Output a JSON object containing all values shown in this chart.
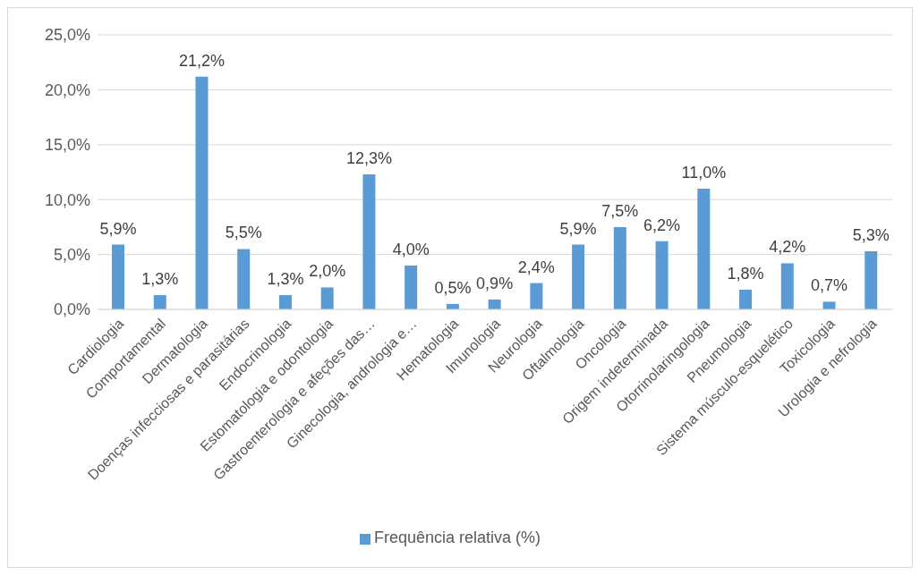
{
  "chart_data": {
    "type": "bar",
    "categories": [
      "Cardiologia",
      "Comportamental",
      "Dermatologia",
      "Doenças infecciosas e parasitárias",
      "Endocrinologia",
      "Estomatologia e odontologia",
      "Gastroenterologia e afeções das…",
      "Ginecologia, andrologia e…",
      "Hematologia",
      "Imunologia",
      "Neurologia",
      "Oftalmologia",
      "Oncologia",
      "Origem indeterminada",
      "Otorrinolaringologia",
      "Pneumologia",
      "Sistema músculo-esquelético",
      "Toxicologia",
      "Urologia e nefrologia"
    ],
    "series": [
      {
        "name": "Frequência relativa (%)",
        "color": "#5b9bd5",
        "values": [
          5.9,
          1.3,
          21.2,
          5.5,
          1.3,
          2.0,
          12.3,
          4.0,
          0.5,
          0.9,
          2.4,
          5.9,
          7.5,
          6.2,
          11.0,
          1.8,
          4.2,
          0.7,
          5.3
        ],
        "value_labels": [
          "5,9%",
          "1,3%",
          "21,2%",
          "5,5%",
          "1,3%",
          "2,0%",
          "12,3%",
          "4,0%",
          "0,5%",
          "0,9%",
          "2,4%",
          "5,9%",
          "7,5%",
          "6,2%",
          "11,0%",
          "1,8%",
          "4,2%",
          "0,7%",
          "5,3%"
        ]
      }
    ],
    "ylim": [
      0,
      25
    ],
    "yticks": [
      {
        "value": 0,
        "label": "0,0%"
      },
      {
        "value": 5,
        "label": "5,0%"
      },
      {
        "value": 10,
        "label": "10,0%"
      },
      {
        "value": 15,
        "label": "15,0%"
      },
      {
        "value": 20,
        "label": "20,0%"
      },
      {
        "value": 25,
        "label": "25,0%"
      }
    ],
    "grid": "y",
    "legend": "bottom"
  }
}
